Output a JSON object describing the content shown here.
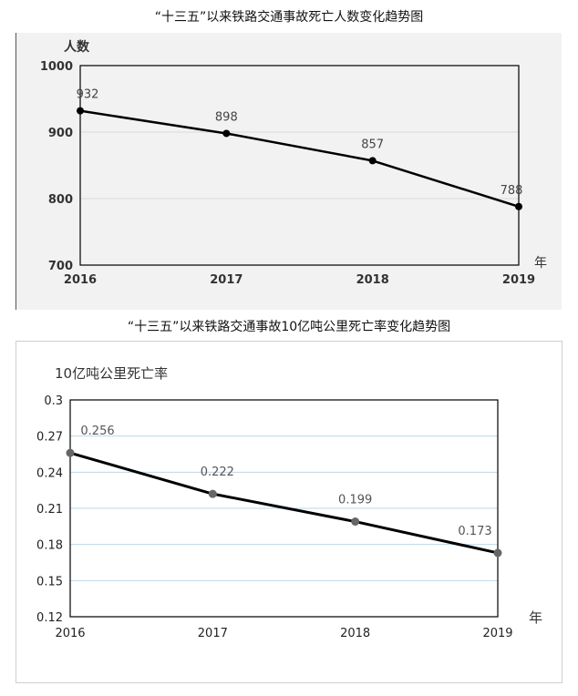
{
  "charts": [
    {
      "type": "line",
      "title": "“十三五”以来铁路交通事故死亡人数变化趋势图",
      "ylabel": "人数",
      "xlabel": "年",
      "categories": [
        "2016",
        "2017",
        "2018",
        "2019"
      ],
      "values": [
        932,
        898,
        857,
        788
      ],
      "value_labels": [
        "932",
        "898",
        "857",
        "788"
      ],
      "ylim": [
        700,
        1000
      ],
      "yticks": [
        700,
        800,
        900,
        1000
      ],
      "ytick_labels": [
        "700",
        "800",
        "900",
        "1000"
      ],
      "grid": true,
      "line_color": "#000000",
      "marker_color": "#000000"
    },
    {
      "type": "line",
      "title": "“十三五”以来铁路交通事故10亿吨公里死亡率变化趋势图",
      "ylabel": "10亿吨公里死亡率",
      "xlabel": "年",
      "categories": [
        "2016",
        "2017",
        "2018",
        "2019"
      ],
      "values": [
        0.256,
        0.222,
        0.199,
        0.173
      ],
      "value_labels": [
        "0.256",
        "0.222",
        "0.199",
        "0.173"
      ],
      "ylim": [
        0.12,
        0.3
      ],
      "yticks": [
        0.12,
        0.15,
        0.18,
        0.21,
        0.24,
        0.27,
        0.3
      ],
      "ytick_labels": [
        "0.12",
        "0.15",
        "0.18",
        "0.21",
        "0.24",
        "0.27",
        "0.3"
      ],
      "grid": true,
      "line_color": "#000000",
      "marker_color": "#666666"
    }
  ]
}
